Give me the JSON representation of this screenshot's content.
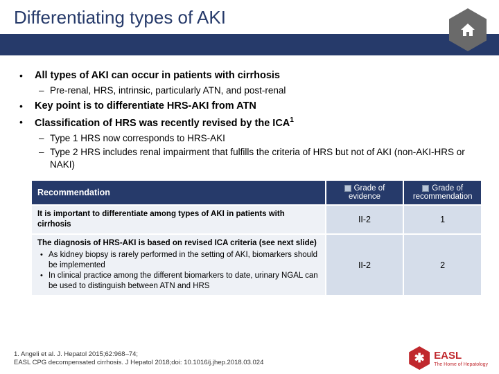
{
  "colors": {
    "header_bg": "#263a6a",
    "border": "#263a6a",
    "title_text": "#263a6a",
    "table_header_bg": "#263a6a",
    "body_cell_bg": "#eef1f6",
    "grade_cell_bg": "#d5ddea",
    "logo_text": "#c0282d",
    "home_hex": "#6a6a6a"
  },
  "title": "Differentiating types of AKI",
  "bullets": {
    "b1": {
      "text": "All types of AKI can occur in patients with cirrhosis",
      "sub": [
        "Pre-renal, HRS, intrinsic, particularly ATN, and post-renal"
      ]
    },
    "b2": {
      "text": "Key point is to differentiate HRS-AKI from ATN"
    },
    "b3": {
      "text": "Classification of HRS was recently revised by the ICA",
      "sup": "1",
      "sub": [
        "Type 1 HRS now corresponds to HRS-AKI",
        "Type 2 HRS includes renal impairment that fulfills the criteria of HRS but not of AKI (non-AKI-HRS or NAKI)"
      ]
    }
  },
  "table": {
    "header": {
      "rec": "Recommendation",
      "evidence": "Grade of evidence",
      "recgrade": "Grade of recommendation"
    },
    "col_widths": {
      "rec": 420,
      "evidence": 110,
      "recgrade": 110
    },
    "rows": [
      {
        "text": "It is important to differentiate among types of AKI in patients with cirrhosis",
        "evidence": "II-2",
        "recgrade": "1"
      },
      {
        "text": "The diagnosis of HRS-AKI is based on revised ICA criteria (see next slide)",
        "inner": [
          "As kidney biopsy is rarely performed in the setting of AKI, biomarkers should be implemented",
          "In clinical practice among the different biomarkers to date, urinary NGAL can be used to distinguish between ATN and HRS"
        ],
        "evidence": "II-2",
        "recgrade": "2"
      }
    ]
  },
  "footnote": {
    "line1": "1. Angeli et al. J. Hepatol 2015;62:968–74;",
    "line2": "EASL CPG decompensated cirrhosis. J Hepatol 2018;doi: 10.1016/j.jhep.2018.03.024"
  },
  "logo": {
    "text": "EASL",
    "sub": "The Home of Hepatology"
  }
}
